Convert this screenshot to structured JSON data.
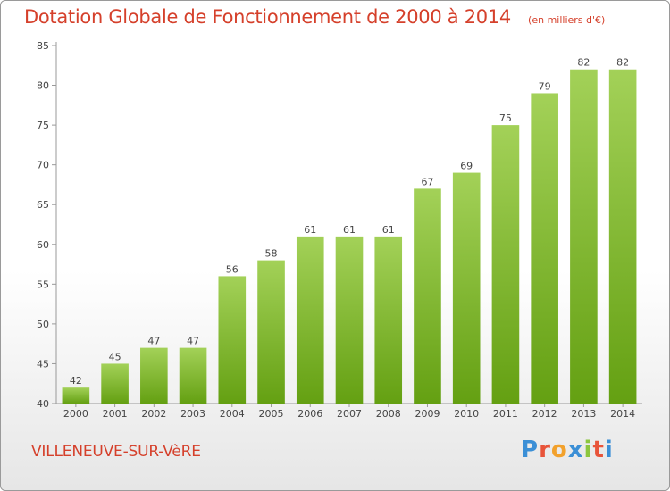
{
  "title": "Dotation Globale de Fonctionnement de 2000 à 2014",
  "subtitle": "(en milliers d'€)",
  "commune": "VILLENEUVE-SUR-VèRE",
  "logo": {
    "letters": [
      "P",
      "r",
      "o",
      "x",
      "i",
      "t",
      "i"
    ],
    "colors": [
      "#3b8fd6",
      "#e8543a",
      "#f2a12c",
      "#3b8fd6",
      "#8cc63f",
      "#e8543a",
      "#3b8fd6"
    ]
  },
  "colors": {
    "bar_top": "#a3d158",
    "bar_bottom": "#64a012",
    "text": "#d5402b",
    "label": "#444444"
  },
  "chart_data": {
    "type": "bar",
    "categories": [
      "2000",
      "2001",
      "2002",
      "2003",
      "2004",
      "2005",
      "2006",
      "2007",
      "2008",
      "2009",
      "2010",
      "2011",
      "2012",
      "2013",
      "2014"
    ],
    "values": [
      42,
      45,
      47,
      47,
      56,
      58,
      61,
      61,
      61,
      67,
      69,
      75,
      79,
      82,
      82
    ],
    "ylim": [
      40,
      85
    ],
    "yticks": [
      40,
      45,
      50,
      55,
      60,
      65,
      70,
      75,
      80,
      85
    ],
    "grid": false,
    "data_labels": true
  }
}
